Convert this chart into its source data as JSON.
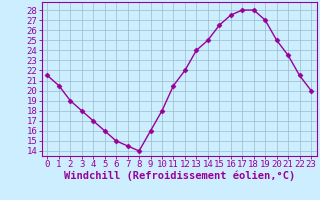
{
  "x": [
    0,
    1,
    2,
    3,
    4,
    5,
    6,
    7,
    8,
    9,
    10,
    11,
    12,
    13,
    14,
    15,
    16,
    17,
    18,
    19,
    20,
    21,
    22,
    23
  ],
  "y": [
    21.5,
    20.5,
    19.0,
    18.0,
    17.0,
    16.0,
    15.0,
    14.5,
    14.0,
    16.0,
    18.0,
    20.5,
    22.0,
    24.0,
    25.0,
    26.5,
    27.5,
    28.0,
    28.0,
    27.0,
    25.0,
    23.5,
    21.5,
    20.0
  ],
  "line_color": "#990099",
  "marker": "D",
  "marker_size": 2.5,
  "bg_color": "#cceeff",
  "grid_color": "#99bbcc",
  "xlabel": "Windchill (Refroidissement éolien,°C)",
  "ylabel_ticks": [
    14,
    15,
    16,
    17,
    18,
    19,
    20,
    21,
    22,
    23,
    24,
    25,
    26,
    27,
    28
  ],
  "ylim": [
    13.5,
    28.8
  ],
  "xlim": [
    -0.5,
    23.5
  ],
  "xticks": [
    0,
    1,
    2,
    3,
    4,
    5,
    6,
    7,
    8,
    9,
    10,
    11,
    12,
    13,
    14,
    15,
    16,
    17,
    18,
    19,
    20,
    21,
    22,
    23
  ],
  "xtick_labels": [
    "0",
    "1",
    "2",
    "3",
    "4",
    "5",
    "6",
    "7",
    "8",
    "9",
    "10",
    "11",
    "12",
    "13",
    "14",
    "15",
    "16",
    "17",
    "18",
    "19",
    "20",
    "21",
    "22",
    "23"
  ],
  "tick_fontsize": 6.5,
  "xlabel_fontsize": 7.5,
  "line_width": 1.0
}
